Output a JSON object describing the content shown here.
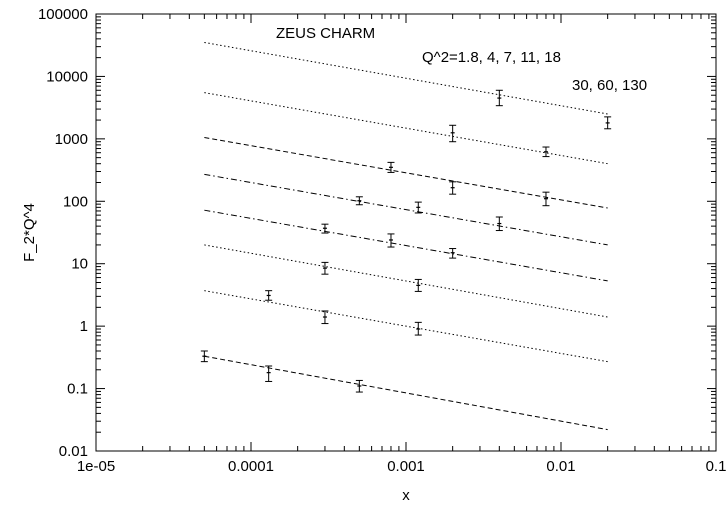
{
  "chart_data": {
    "type": "line",
    "title": "",
    "annotations": [
      "ZEUS CHARM",
      "Q^2=1.8, 4, 7, 11, 18",
      "30, 60, 130"
    ],
    "xlabel": "x",
    "ylabel": "F_2*Q^4",
    "x_scale": "log",
    "y_scale": "log",
    "xlim": [
      1e-05,
      0.1
    ],
    "ylim": [
      0.01,
      100000
    ],
    "x_ticks": [
      "1e-05",
      "0.0001",
      "0.001",
      "0.01",
      "0.1"
    ],
    "y_ticks": [
      "0.01",
      "0.1",
      "1",
      "10",
      "100",
      "1000",
      "10000",
      "100000"
    ],
    "grid": false,
    "legend": "none",
    "series": [
      {
        "line": [
          [
            5e-05,
            0.33
          ],
          [
            0.02,
            0.022
          ]
        ],
        "style": "dashed",
        "points": [
          {
            "x": 5e-05,
            "y": 0.33,
            "lo": 0.27,
            "hi": 0.4
          },
          {
            "x": 0.00013,
            "y": 0.18,
            "lo": 0.13,
            "hi": 0.23
          },
          {
            "x": 0.0005,
            "y": 0.11,
            "lo": 0.088,
            "hi": 0.135
          }
        ]
      },
      {
        "line": [
          [
            5e-05,
            3.7
          ],
          [
            0.02,
            0.27
          ]
        ],
        "style": "dotted",
        "points": [
          {
            "x": 0.00013,
            "y": 3.1,
            "lo": 2.6,
            "hi": 3.7
          },
          {
            "x": 0.0003,
            "y": 1.4,
            "lo": 1.1,
            "hi": 1.75
          },
          {
            "x": 0.0012,
            "y": 0.9,
            "lo": 0.72,
            "hi": 1.15
          }
        ]
      },
      {
        "line": [
          [
            5e-05,
            20
          ],
          [
            0.02,
            1.4
          ]
        ],
        "style": "dotted",
        "points": [
          {
            "x": 0.0003,
            "y": 8.5,
            "lo": 6.8,
            "hi": 10.5
          },
          {
            "x": 0.0012,
            "y": 4.5,
            "lo": 3.6,
            "hi": 5.6
          }
        ]
      },
      {
        "line": [
          [
            5e-05,
            72
          ],
          [
            0.02,
            5.3
          ]
        ],
        "style": "dashdot",
        "points": [
          {
            "x": 0.0003,
            "y": 37,
            "lo": 31,
            "hi": 43
          },
          {
            "x": 0.0008,
            "y": 24,
            "lo": 18.5,
            "hi": 30
          },
          {
            "x": 0.002,
            "y": 15,
            "lo": 12.3,
            "hi": 17.5
          }
        ]
      },
      {
        "line": [
          [
            5e-05,
            270
          ],
          [
            0.02,
            20
          ]
        ],
        "style": "dashdot",
        "points": [
          {
            "x": 0.0005,
            "y": 102,
            "lo": 88,
            "hi": 118
          },
          {
            "x": 0.0012,
            "y": 80,
            "lo": 65,
            "hi": 97
          },
          {
            "x": 0.004,
            "y": 44,
            "lo": 34,
            "hi": 56
          }
        ]
      },
      {
        "line": [
          [
            5e-05,
            1050
          ],
          [
            0.02,
            78
          ]
        ],
        "style": "dashed",
        "points": [
          {
            "x": 0.0008,
            "y": 350,
            "lo": 290,
            "hi": 420
          },
          {
            "x": 0.002,
            "y": 165,
            "lo": 130,
            "hi": 205
          },
          {
            "x": 0.008,
            "y": 110,
            "lo": 85,
            "hi": 140
          }
        ]
      },
      {
        "line": [
          [
            5e-05,
            5500
          ],
          [
            0.02,
            400
          ]
        ],
        "style": "dotted",
        "points": [
          {
            "x": 0.002,
            "y": 1250,
            "lo": 900,
            "hi": 1650
          },
          {
            "x": 0.008,
            "y": 620,
            "lo": 520,
            "hi": 740
          }
        ]
      },
      {
        "line": [
          [
            5e-05,
            35000
          ],
          [
            0.02,
            2500
          ]
        ],
        "style": "dotted",
        "points": [
          {
            "x": 0.004,
            "y": 4500,
            "lo": 3400,
            "hi": 6000
          },
          {
            "x": 0.02,
            "y": 1800,
            "lo": 1450,
            "hi": 2250
          }
        ]
      }
    ]
  }
}
